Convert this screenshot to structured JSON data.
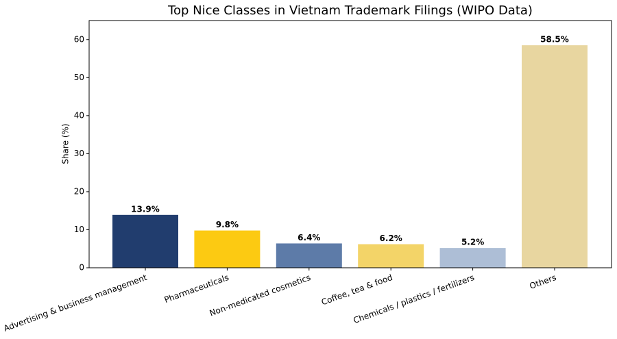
{
  "chart_data": {
    "type": "bar",
    "title": "Top Nice Classes in Vietnam Trademark Filings (WIPO Data)",
    "y_label": "Share (%)",
    "categories": [
      "Advertising & business management",
      "Pharmaceuticals",
      "Non-medicated cosmetics",
      "Coffee, tea & food",
      "Chemicals / plastics / fertilizers",
      "Others"
    ],
    "values": [
      13.9,
      9.8,
      6.4,
      6.2,
      5.2,
      58.5
    ],
    "value_labels": [
      "13.9%",
      "9.8%",
      "6.4%",
      "6.2%",
      "5.2%",
      "58.5%"
    ],
    "colors": [
      "#213d6e",
      "#fcca12",
      "#5d7ba8",
      "#f3d468",
      "#adbed6",
      "#e8d6a0"
    ],
    "ylim": [
      0,
      65
    ],
    "yticks": [
      0,
      10,
      20,
      30,
      40,
      50,
      60
    ],
    "grid": false
  }
}
